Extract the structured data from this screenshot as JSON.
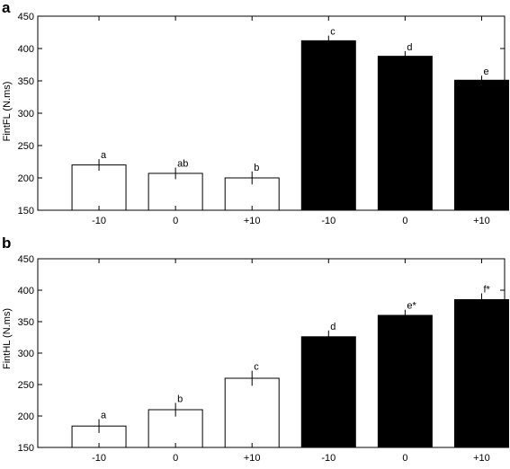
{
  "chart_data": [
    {
      "type": "bar",
      "panel_label": "a",
      "ylabel": "FintFL (N.ms)",
      "ylim": [
        150,
        450
      ],
      "yticks": [
        150,
        200,
        250,
        300,
        350,
        400,
        450
      ],
      "categories": [
        "-10",
        "0",
        "+10",
        "-10",
        "0",
        "+10"
      ],
      "values": [
        220,
        207,
        200,
        412,
        388,
        351
      ],
      "errors": [
        9,
        9,
        10,
        8,
        8,
        7
      ],
      "bar_colors": [
        "#ffffff",
        "#ffffff",
        "#ffffff",
        "#000000",
        "#000000",
        "#000000"
      ],
      "significance_labels": [
        "a",
        "ab",
        "b",
        "c",
        "d",
        "e"
      ],
      "grid": false
    },
    {
      "type": "bar",
      "panel_label": "b",
      "ylabel": "FintHL (N.ms)",
      "ylim": [
        150,
        450
      ],
      "yticks": [
        150,
        200,
        250,
        300,
        350,
        400,
        450
      ],
      "categories": [
        "-10",
        "0",
        "+10",
        "-10",
        "0",
        "+10"
      ],
      "values": [
        184,
        210,
        260,
        326,
        360,
        385
      ],
      "errors": [
        11,
        11,
        12,
        10,
        9,
        10
      ],
      "bar_colors": [
        "#ffffff",
        "#ffffff",
        "#ffffff",
        "#000000",
        "#000000",
        "#000000"
      ],
      "significance_labels": [
        "a",
        "b",
        "c",
        "d",
        "e*",
        "f*"
      ],
      "grid": false
    }
  ]
}
